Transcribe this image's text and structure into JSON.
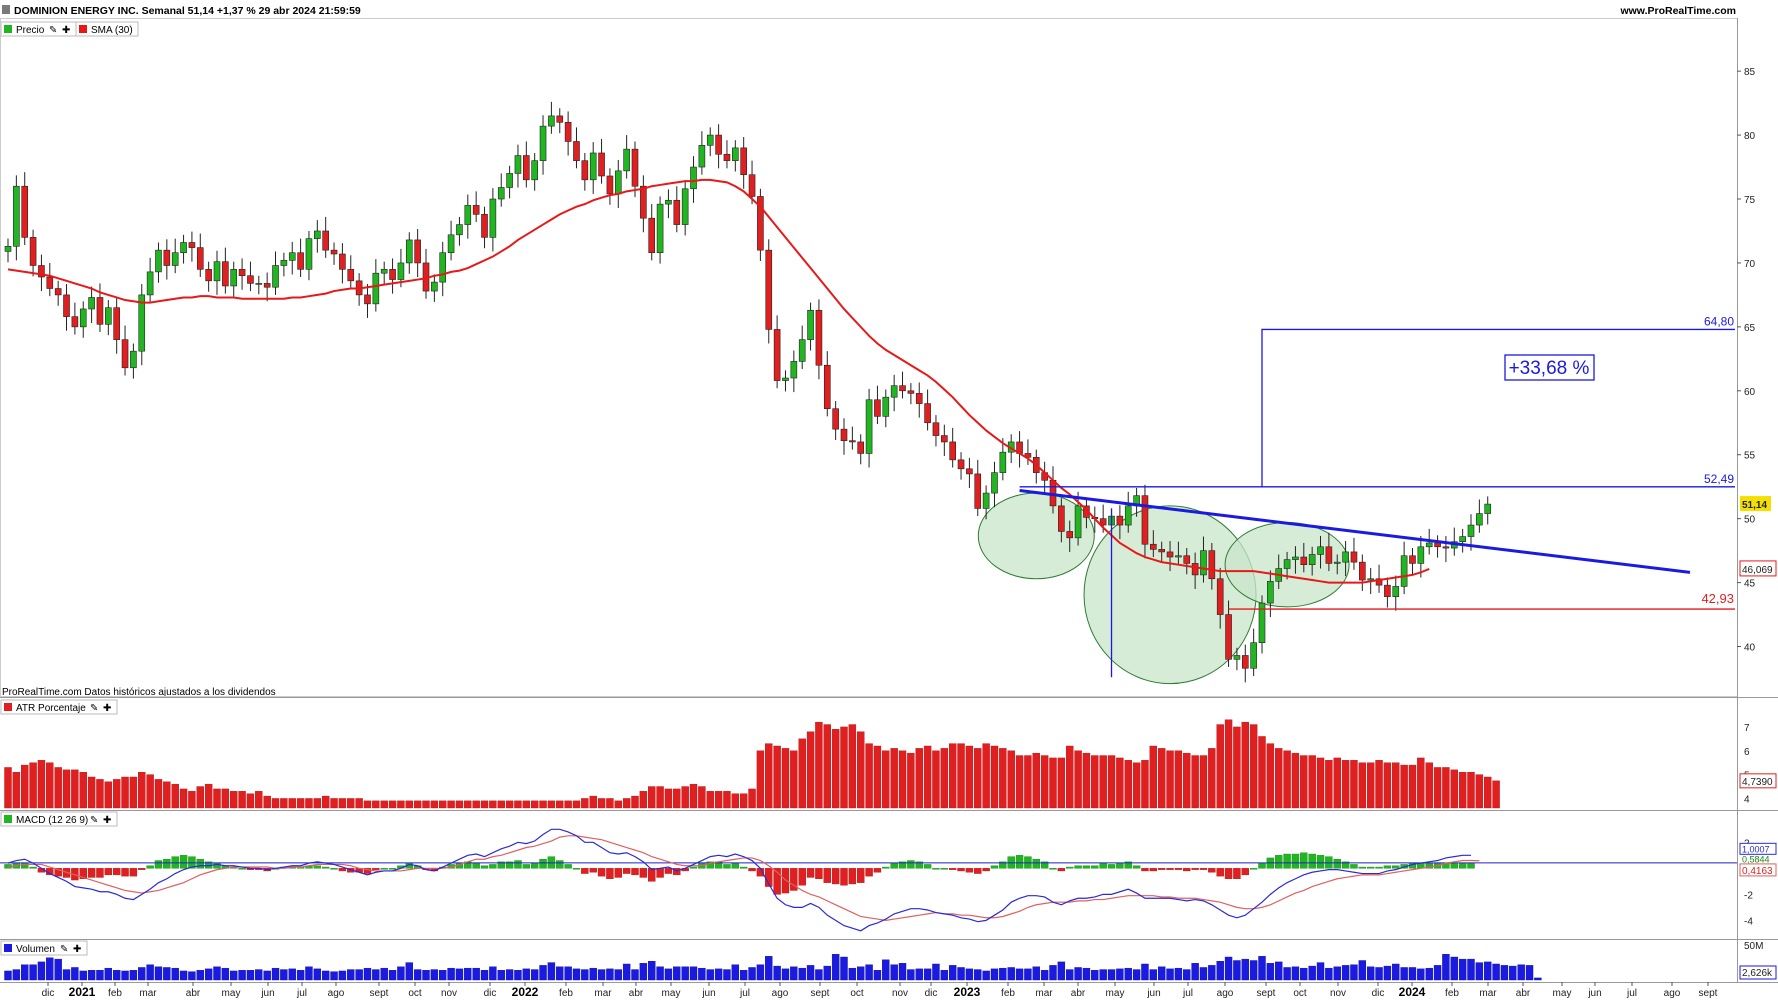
{
  "header": {
    "title": "DOMINION ENERGY INC. Semanal 51,14 +1,37 % 29 abr 2024 21:59:59",
    "site": "www.ProRealTime.com",
    "note": "ProRealTime.com Datos históricos ajustados a los dividendos"
  },
  "legend": {
    "price": "Precio",
    "sma": "SMA (30)",
    "atr": "ATR Porcentaje",
    "macd": "MACD (12 26 9)",
    "volume": "Volumen"
  },
  "colors": {
    "up": "#21b621",
    "down": "#e02020",
    "sma": "#e81818",
    "blue": "#1a1ae0",
    "ellipse_fill": "#c8e6c9",
    "ellipse_stroke": "#2e7d32"
  },
  "annotations": {
    "target": "64,80",
    "neckline": "52,49",
    "support": "42,93",
    "pct": "+33,68 %",
    "last_price": "51,14",
    "sma_value": "46,069",
    "atr_value": "4,7390",
    "macd_value1": "1,0007",
    "macd_value2": "0,5844",
    "macd_value3": "0,4163",
    "vol_value": "2,626k",
    "vol_axis": "50M"
  },
  "chart_data": [
    {
      "type": "candlestick",
      "title": "DOMINION ENERGY INC. Semanal",
      "ylim": [
        36.6,
        89
      ],
      "y_ticks": [
        40,
        45,
        50,
        55,
        60,
        65,
        70,
        75,
        80,
        85
      ],
      "x_ticks": [
        "dic",
        "2021",
        "feb",
        "mar",
        "abr",
        "may",
        "jun",
        "jul",
        "ago",
        "sept",
        "oct",
        "nov",
        "dic",
        "2022",
        "feb",
        "mar",
        "abr",
        "may",
        "jun",
        "jul",
        "ago",
        "sept",
        "oct",
        "nov",
        "dic",
        "2023",
        "feb",
        "mar",
        "abr",
        "may",
        "jun",
        "jul",
        "ago",
        "sept",
        "oct",
        "nov",
        "dic",
        "2024",
        "feb",
        "mar",
        "abr",
        "may",
        "jun",
        "jul",
        "ago",
        "sept"
      ],
      "close": [
        71.3,
        76.0,
        72.0,
        69.8,
        68.9,
        68.0,
        67.5,
        65.8,
        65.0,
        66.4,
        67.3,
        65.2,
        66.5,
        64.0,
        61.8,
        63.1,
        67.5,
        69.3,
        71.0,
        69.8,
        70.8,
        71.6,
        71.2,
        69.5,
        68.6,
        70.1,
        68.2,
        69.5,
        69.0,
        68.4,
        68.4,
        68.1,
        69.8,
        70.2,
        70.8,
        69.5,
        71.9,
        72.5,
        71.0,
        70.7,
        69.5,
        68.6,
        67.5,
        66.8,
        69.2,
        69.5,
        68.7,
        70.0,
        71.8,
        70.0,
        67.8,
        68.5,
        70.8,
        72.2,
        73.0,
        74.5,
        73.8,
        72.0,
        75.0,
        75.9,
        77.0,
        78.4,
        76.5,
        78.0,
        80.7,
        81.5,
        81.0,
        79.5,
        78.0,
        76.5,
        78.6,
        76.8,
        75.4,
        77.2,
        78.9,
        76.0,
        73.5,
        70.8,
        74.6,
        74.9,
        73.0,
        75.8,
        77.5,
        79.2,
        80.0,
        78.5,
        78.0,
        79.0,
        76.9,
        75.2,
        71.0,
        64.8,
        60.8,
        61.0,
        62.3,
        64.0,
        66.3,
        62.0,
        58.6,
        57.0,
        56.1,
        56.0,
        55.1,
        59.3,
        58.0,
        59.5,
        60.4,
        60.0,
        59.8,
        59.0,
        57.5,
        56.5,
        56.0,
        54.6,
        53.9,
        53.5,
        50.8,
        52.0,
        53.6,
        55.2,
        56.0,
        55.1,
        54.8,
        53.6,
        53.0,
        51.0,
        49.0,
        48.5,
        51.0,
        50.1,
        50.0,
        49.5,
        50.2,
        49.5,
        51.0,
        51.8,
        48.0,
        47.6,
        47.4,
        47.0,
        47.1,
        46.5,
        45.6,
        47.5,
        45.3,
        42.5,
        39.0,
        39.3,
        38.3,
        40.3,
        43.4,
        45.1,
        46.1,
        46.8,
        47.0,
        46.4,
        47.2,
        47.8,
        46.5,
        46.6,
        47.4,
        46.6,
        45.2,
        45.3,
        44.8,
        43.9,
        44.7,
        47.1,
        46.5,
        47.8,
        48.1,
        47.8,
        47.7,
        48.2,
        48.6,
        49.5,
        50.4,
        51.14
      ],
      "sma30": [
        69.5,
        69.4,
        69.3,
        69.2,
        69.1,
        69.0,
        68.8,
        68.6,
        68.4,
        68.2,
        68.0,
        67.7,
        67.5,
        67.3,
        67.1,
        67.0,
        66.9,
        66.9,
        67.0,
        67.1,
        67.2,
        67.3,
        67.3,
        67.4,
        67.4,
        67.3,
        67.3,
        67.3,
        67.2,
        67.2,
        67.2,
        67.2,
        67.2,
        67.2,
        67.3,
        67.3,
        67.4,
        67.5,
        67.6,
        67.8,
        67.9,
        68.0,
        68.0,
        68.1,
        68.2,
        68.3,
        68.4,
        68.5,
        68.6,
        68.7,
        68.8,
        69.0,
        69.1,
        69.3,
        69.4,
        69.6,
        69.9,
        70.2,
        70.5,
        70.9,
        71.3,
        71.8,
        72.2,
        72.6,
        73.0,
        73.4,
        73.8,
        74.1,
        74.4,
        74.6,
        74.9,
        75.1,
        75.3,
        75.4,
        75.6,
        75.7,
        75.8,
        76.0,
        76.1,
        76.2,
        76.3,
        76.4,
        76.4,
        76.5,
        76.5,
        76.4,
        76.3,
        76.0,
        75.6,
        75.0,
        74.4,
        73.6,
        72.8,
        72.0,
        71.2,
        70.4,
        69.6,
        68.8,
        68.0,
        67.2,
        66.4,
        65.7,
        65.0,
        64.3,
        63.7,
        63.2,
        62.8,
        62.4,
        62.0,
        61.6,
        61.2,
        60.7,
        60.1,
        59.5,
        58.8,
        58.1,
        57.5,
        56.9,
        56.4,
        55.9,
        55.5,
        55.1,
        54.7,
        54.2,
        53.6,
        53.0,
        52.4,
        51.9,
        51.3,
        50.7,
        50.0,
        49.3,
        48.7,
        48.1,
        47.7,
        47.3,
        47.0,
        46.8,
        46.6,
        46.5,
        46.4,
        46.3,
        46.2,
        46.1,
        46.0,
        45.9,
        45.9,
        45.9,
        45.9,
        45.9,
        45.8,
        45.7,
        45.6,
        45.5,
        45.4,
        45.3,
        45.2,
        45.1,
        45.0,
        45.0,
        45.0,
        45.0,
        45.0,
        45.1,
        45.2,
        45.3,
        45.4,
        45.5,
        45.6,
        45.8,
        46.069
      ]
    },
    {
      "type": "bar",
      "title": "ATR Porcentaje",
      "ylim": [
        3.6,
        7.5
      ],
      "y_ticks": [
        4,
        5,
        6,
        7
      ],
      "values": [
        5.3,
        5.1,
        5.4,
        5.5,
        5.6,
        5.5,
        5.3,
        5.2,
        5.2,
        5.1,
        4.9,
        4.8,
        4.7,
        4.8,
        4.9,
        4.9,
        5.1,
        5.0,
        4.8,
        4.7,
        4.6,
        4.4,
        4.3,
        4.5,
        4.6,
        4.4,
        4.4,
        4.3,
        4.3,
        4.2,
        4.3,
        4.1,
        4.0,
        4.0,
        4.0,
        4.0,
        4.0,
        4.0,
        4.1,
        4.0,
        4.0,
        4.0,
        4.0,
        3.9,
        3.9,
        3.9,
        3.9,
        3.9,
        3.9,
        3.9,
        3.9,
        3.9,
        3.9,
        3.9,
        3.9,
        3.9,
        3.9,
        3.9,
        3.9,
        3.9,
        3.9,
        3.9,
        3.9,
        3.9,
        3.9,
        3.9,
        3.9,
        3.9,
        3.9,
        4.0,
        4.1,
        4.0,
        4.0,
        3.9,
        4.0,
        4.1,
        4.3,
        4.5,
        4.5,
        4.4,
        4.4,
        4.5,
        4.6,
        4.5,
        4.3,
        4.3,
        4.3,
        4.2,
        4.2,
        4.4,
        6.0,
        6.3,
        6.2,
        6.1,
        6.0,
        6.5,
        6.8,
        7.2,
        7.1,
        6.9,
        7.0,
        7.1,
        6.8,
        6.3,
        6.2,
        6.0,
        6.1,
        6.0,
        5.9,
        6.1,
        6.2,
        6.0,
        6.1,
        6.3,
        6.3,
        6.2,
        6.1,
        6.3,
        6.2,
        6.1,
        6.0,
        5.8,
        5.8,
        5.9,
        5.8,
        5.7,
        5.7,
        6.2,
        6.0,
        5.9,
        5.8,
        5.8,
        5.8,
        5.7,
        5.6,
        5.5,
        5.6,
        6.2,
        6.1,
        6.0,
        6.0,
        5.9,
        5.8,
        5.8,
        6.1,
        7.1,
        7.3,
        7.0,
        7.2,
        7.1,
        6.6,
        6.3,
        6.1,
        6.0,
        5.9,
        5.8,
        5.8,
        5.7,
        5.6,
        5.7,
        5.6,
        5.6,
        5.5,
        5.5,
        5.6,
        5.5,
        5.5,
        5.4,
        5.4,
        5.7,
        5.5,
        5.3,
        5.3,
        5.2,
        5.1,
        5.1,
        5.0,
        4.9,
        4.739
      ]
    },
    {
      "type": "line",
      "title": "MACD (12 26 9)",
      "ylim": [
        -5.2,
        3.1
      ],
      "y_ticks": [
        2,
        0,
        -2,
        -4
      ],
      "macd": [
        0.4,
        0.6,
        0.7,
        0.4,
        0.0,
        -0.4,
        -0.7,
        -1.0,
        -1.4,
        -1.5,
        -1.6,
        -1.8,
        -1.8,
        -2.0,
        -2.3,
        -2.4,
        -2.0,
        -1.6,
        -1.1,
        -0.8,
        -0.4,
        -0.1,
        0.1,
        0.2,
        0.2,
        0.3,
        0.2,
        0.2,
        0.1,
        0.0,
        0.0,
        -0.1,
        0.0,
        0.1,
        0.2,
        0.2,
        0.4,
        0.5,
        0.4,
        0.3,
        0.1,
        -0.1,
        -0.3,
        -0.5,
        -0.3,
        -0.2,
        -0.2,
        0.0,
        0.3,
        0.2,
        -0.1,
        -0.2,
        0.1,
        0.4,
        0.7,
        1.0,
        1.1,
        0.9,
        1.2,
        1.5,
        1.7,
        2.0,
        1.9,
        2.1,
        2.6,
        3.0,
        3.0,
        2.8,
        2.5,
        2.0,
        2.0,
        1.6,
        1.2,
        1.1,
        1.2,
        0.9,
        0.5,
        -0.1,
        0.0,
        0.1,
        -0.2,
        0.0,
        0.3,
        0.6,
        0.9,
        1.0,
        0.9,
        1.1,
        0.9,
        0.6,
        0.0,
        -1.2,
        -2.3,
        -2.8,
        -3.0,
        -3.0,
        -2.7,
        -3.0,
        -3.6,
        -4.0,
        -4.4,
        -4.6,
        -4.8,
        -4.4,
        -4.2,
        -3.9,
        -3.5,
        -3.3,
        -3.1,
        -3.1,
        -3.2,
        -3.4,
        -3.5,
        -3.6,
        -3.8,
        -3.9,
        -4.1,
        -4.0,
        -3.6,
        -3.2,
        -2.6,
        -2.3,
        -2.1,
        -2.1,
        -2.2,
        -2.6,
        -2.8,
        -2.5,
        -2.3,
        -2.3,
        -2.2,
        -2.0,
        -2.0,
        -1.8,
        -1.6,
        -1.9,
        -2.3,
        -2.3,
        -2.3,
        -2.3,
        -2.4,
        -2.5,
        -2.4,
        -2.5,
        -2.8,
        -3.2,
        -3.6,
        -3.8,
        -3.6,
        -3.1,
        -2.6,
        -2.0,
        -1.5,
        -1.1,
        -0.8,
        -0.5,
        -0.3,
        -0.2,
        -0.1,
        -0.1,
        -0.2,
        -0.3,
        -0.4,
        -0.4,
        -0.4,
        -0.2,
        -0.1,
        0.1,
        0.3,
        0.4,
        0.5,
        0.6,
        0.8,
        0.9,
        1.0,
        1.0007
      ],
      "signal": [
        0.1,
        0.2,
        0.3,
        0.3,
        0.3,
        0.1,
        -0.1,
        -0.3,
        -0.5,
        -0.7,
        -0.9,
        -1.1,
        -1.3,
        -1.5,
        -1.7,
        -1.8,
        -1.9,
        -1.8,
        -1.7,
        -1.5,
        -1.3,
        -1.1,
        -0.8,
        -0.5,
        -0.3,
        -0.1,
        0.0,
        0.1,
        0.1,
        0.1,
        0.1,
        0.1,
        0.0,
        0.0,
        0.1,
        0.1,
        0.2,
        0.3,
        0.3,
        0.3,
        0.3,
        0.2,
        0.0,
        -0.1,
        -0.2,
        -0.2,
        -0.2,
        -0.2,
        -0.1,
        0.0,
        0.0,
        0.0,
        0.0,
        0.1,
        0.3,
        0.5,
        0.7,
        0.7,
        0.9,
        1.0,
        1.2,
        1.4,
        1.6,
        1.7,
        1.9,
        2.1,
        2.4,
        2.5,
        2.5,
        2.4,
        2.3,
        2.2,
        2.0,
        1.8,
        1.6,
        1.4,
        1.2,
        0.9,
        0.7,
        0.5,
        0.3,
        0.2,
        0.2,
        0.2,
        0.4,
        0.5,
        0.6,
        0.7,
        0.8,
        0.8,
        0.6,
        0.2,
        -0.3,
        -0.9,
        -1.3,
        -1.7,
        -2.0,
        -2.2,
        -2.5,
        -2.8,
        -3.1,
        -3.4,
        -3.7,
        -3.8,
        -3.9,
        -4.0,
        -3.9,
        -3.8,
        -3.7,
        -3.6,
        -3.5,
        -3.4,
        -3.5,
        -3.5,
        -3.6,
        -3.6,
        -3.7,
        -3.8,
        -3.8,
        -3.7,
        -3.5,
        -3.3,
        -3.0,
        -2.8,
        -2.7,
        -2.6,
        -2.6,
        -2.6,
        -2.5,
        -2.5,
        -2.4,
        -2.4,
        -2.3,
        -2.2,
        -2.1,
        -2.1,
        -2.1,
        -2.1,
        -2.2,
        -2.2,
        -2.3,
        -2.3,
        -2.3,
        -2.4,
        -2.5,
        -2.6,
        -2.8,
        -3.0,
        -3.1,
        -3.1,
        -3.0,
        -2.8,
        -2.5,
        -2.2,
        -1.9,
        -1.7,
        -1.4,
        -1.2,
        -1.0,
        -0.8,
        -0.7,
        -0.6,
        -0.5,
        -0.5,
        -0.5,
        -0.4,
        -0.3,
        -0.2,
        -0.1,
        0.0,
        0.1,
        0.2,
        0.4,
        0.5,
        0.6,
        0.6,
        0.5844
      ]
    },
    {
      "type": "bar",
      "title": "Volumen",
      "ylim": [
        0,
        56
      ],
      "y_ticks": [
        50
      ],
      "values": [
        13,
        15,
        22,
        22,
        26,
        32,
        30,
        15,
        18,
        13,
        14,
        14,
        17,
        14,
        13,
        14,
        18,
        22,
        19,
        18,
        17,
        13,
        12,
        14,
        16,
        19,
        17,
        13,
        14,
        14,
        15,
        13,
        17,
        15,
        16,
        14,
        19,
        16,
        13,
        12,
        13,
        15,
        15,
        17,
        15,
        17,
        14,
        19,
        25,
        15,
        14,
        15,
        14,
        17,
        16,
        17,
        17,
        14,
        19,
        14,
        15,
        14,
        16,
        15,
        21,
        25,
        19,
        19,
        16,
        15,
        17,
        15,
        16,
        15,
        23,
        15,
        24,
        27,
        19,
        16,
        19,
        19,
        19,
        17,
        15,
        16,
        15,
        22,
        14,
        18,
        22,
        34,
        20,
        16,
        19,
        17,
        21,
        15,
        20,
        37,
        33,
        17,
        19,
        22,
        14,
        29,
        22,
        24,
        15,
        16,
        16,
        23,
        14,
        21,
        18,
        16,
        15,
        13,
        16,
        17,
        18,
        16,
        16,
        19,
        14,
        21,
        26,
        15,
        18,
        17,
        14,
        15,
        15,
        16,
        17,
        15,
        23,
        15,
        19,
        16,
        17,
        15,
        24,
        18,
        21,
        27,
        33,
        28,
        30,
        28,
        34,
        24,
        26,
        18,
        19,
        17,
        20,
        25,
        17,
        19,
        21,
        22,
        28,
        19,
        18,
        20,
        23,
        18,
        18,
        16,
        17,
        21,
        37,
        33,
        30,
        30,
        25,
        26,
        23,
        21,
        20,
        22,
        21,
        3
      ]
    }
  ]
}
